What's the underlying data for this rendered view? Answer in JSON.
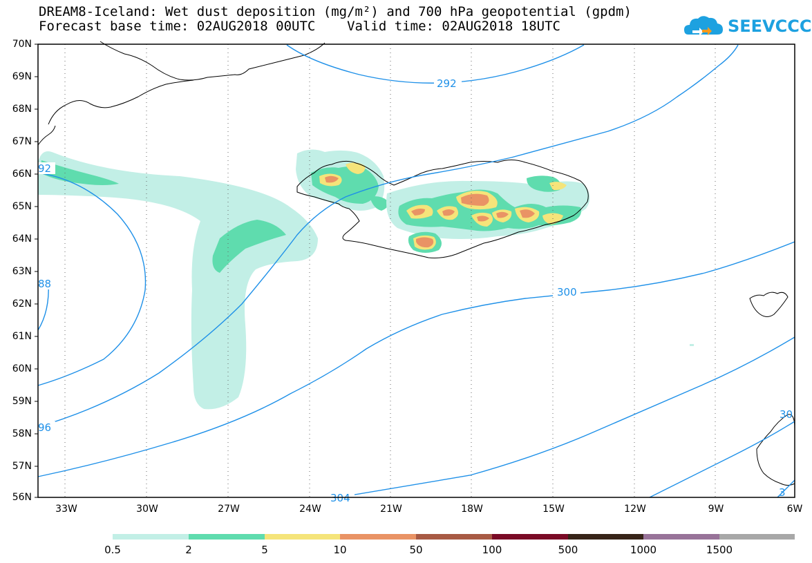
{
  "header": {
    "title_line1": "DREAM8-Iceland: Wet dust deposition (mg/m²) and 700 hPa geopotential (gpdm)",
    "title_line2": "Forecast base time: 02AUG2018 00UTC    Valid time: 02AUG2018 18UTC"
  },
  "logo": {
    "text": "SEEVCCC",
    "color": "#1da1e0"
  },
  "map": {
    "lat_labels": [
      "70N",
      "69N",
      "68N",
      "67N",
      "66N",
      "65N",
      "64N",
      "63N",
      "62N",
      "61N",
      "60N",
      "59N",
      "58N",
      "57N",
      "56N"
    ],
    "lon_labels": [
      "33W",
      "30W",
      "27W",
      "24W",
      "21W",
      "18W",
      "15W",
      "12W",
      "9W",
      "6W"
    ],
    "contour_labels": {
      "c292": "292",
      "c300": "300",
      "c296": "96",
      "c292_left": "92",
      "c288": "88",
      "c304": "304",
      "c304b": "3",
      "c300b": "30"
    },
    "contour_color": "#1e90e8",
    "land_color": "#000000"
  },
  "colorbar": {
    "levels": [
      "0.5",
      "2",
      "5",
      "10",
      "50",
      "100",
      "500",
      "1000",
      "1500"
    ],
    "colors": [
      "#c2efe6",
      "#5fdcae",
      "#f5e47a",
      "#e99365",
      "#a85a44",
      "#7a0a26",
      "#372418",
      "#987399",
      "#a8a8a8"
    ]
  }
}
